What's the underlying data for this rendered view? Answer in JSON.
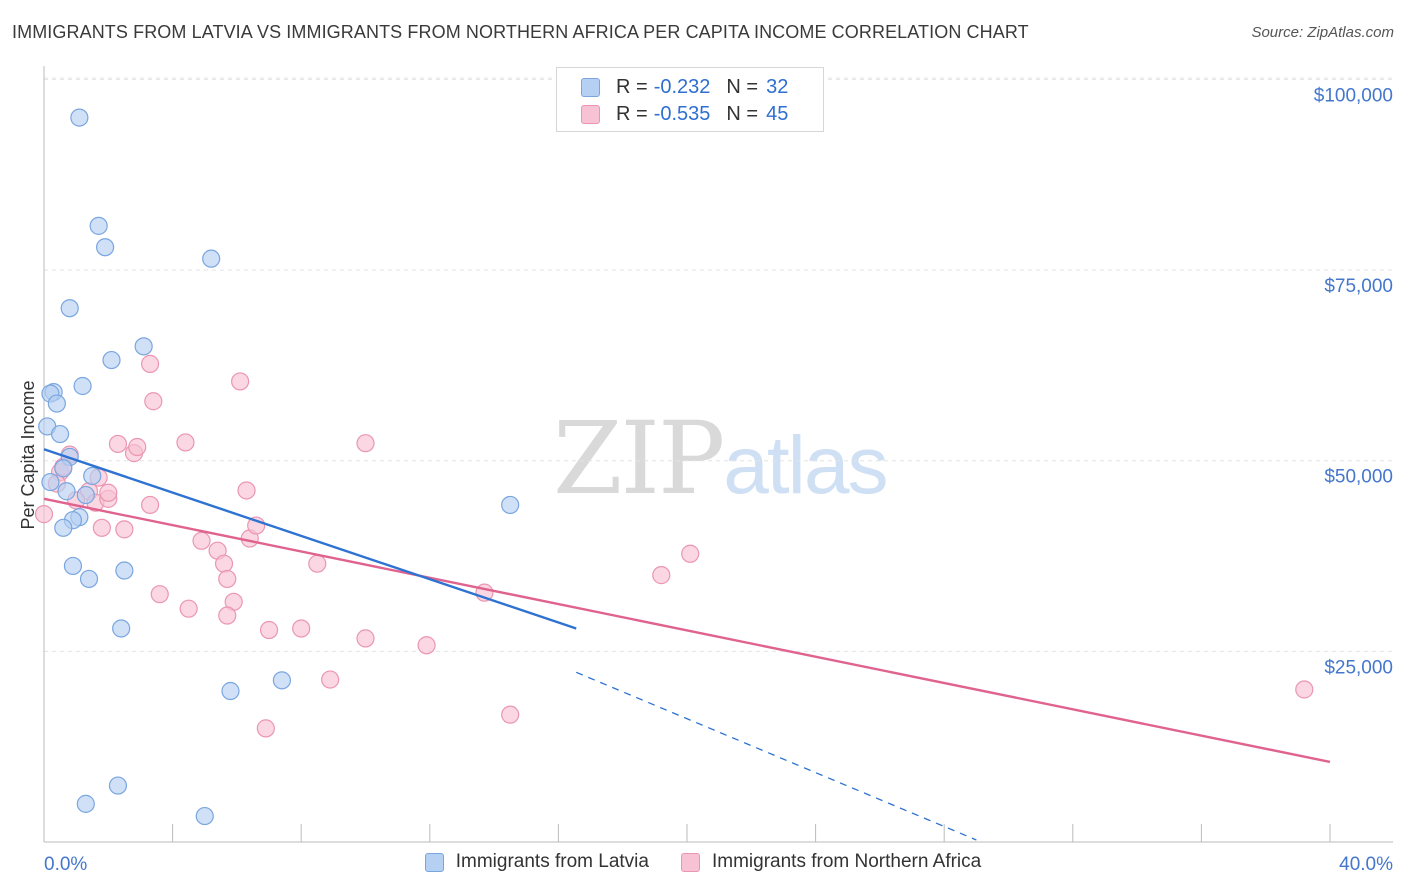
{
  "title": "IMMIGRANTS FROM LATVIA VS IMMIGRANTS FROM NORTHERN AFRICA PER CAPITA INCOME CORRELATION CHART",
  "source": "Source: ZipAtlas.com",
  "watermark": {
    "zip": "ZIP",
    "atlas": "atlas"
  },
  "legend": [
    {
      "r_label": "R =",
      "r_value": "-0.232",
      "n_label": "N =",
      "n_value": "32"
    },
    {
      "r_label": "R =",
      "r_value": "-0.535",
      "n_label": "N =",
      "n_value": "45"
    }
  ],
  "colors": {
    "latvia_fill": "#b5d0f2",
    "latvia_stroke": "#7aa6e0",
    "latvia_line": "#2e72d2",
    "africa_fill": "#f7c2d3",
    "africa_stroke": "#eb96b1",
    "africa_line": "#e0628f",
    "axis_text": "#4477cc",
    "grid": "#e4e4e4"
  },
  "chart_data": {
    "type": "scatter",
    "title": "IMMIGRANTS FROM LATVIA VS IMMIGRANTS FROM NORTHERN AFRICA PER CAPITA INCOME CORRELATION CHART",
    "xlabel": "",
    "ylabel": "Per Capita Income",
    "xlim": [
      0,
      40
    ],
    "ylim": [
      0,
      105000
    ],
    "x_tick_labels": {
      "min": "0.0%",
      "max": "40.0%"
    },
    "y_ticks": [
      {
        "value": 25000,
        "label": "$25,000"
      },
      {
        "value": 50000,
        "label": "$50,000"
      },
      {
        "value": 75000,
        "label": "$75,000"
      },
      {
        "value": 100000,
        "label": "$100,000"
      }
    ],
    "series": [
      {
        "name": "Immigrants from Latvia",
        "points": [
          [
            1.1,
            95000
          ],
          [
            1.7,
            80800
          ],
          [
            1.9,
            78000
          ],
          [
            5.2,
            76500
          ],
          [
            0.8,
            70000
          ],
          [
            3.1,
            65000
          ],
          [
            2.1,
            63200
          ],
          [
            1.2,
            59800
          ],
          [
            0.3,
            59000
          ],
          [
            0.2,
            58800
          ],
          [
            0.4,
            57500
          ],
          [
            0.1,
            54500
          ],
          [
            0.5,
            53500
          ],
          [
            0.8,
            50500
          ],
          [
            0.6,
            49000
          ],
          [
            1.5,
            48000
          ],
          [
            0.2,
            47200
          ],
          [
            0.7,
            46000
          ],
          [
            1.3,
            45500
          ],
          [
            14.5,
            44200
          ],
          [
            1.1,
            42600
          ],
          [
            0.9,
            42200
          ],
          [
            0.6,
            41200
          ],
          [
            0.9,
            36200
          ],
          [
            2.5,
            35600
          ],
          [
            1.4,
            34500
          ],
          [
            2.4,
            28000
          ],
          [
            7.4,
            21200
          ],
          [
            5.8,
            19800
          ],
          [
            2.3,
            7400
          ],
          [
            1.3,
            5000
          ],
          [
            5.0,
            3400
          ]
        ],
        "trend": {
          "x0": 0.0,
          "y0": 51500,
          "x1": 15.0,
          "y1": 25000,
          "dash_to_x": 29.0
        }
      },
      {
        "name": "Immigrants from Northern Africa",
        "points": [
          [
            0.0,
            43000
          ],
          [
            0.5,
            48500
          ],
          [
            0.8,
            50800
          ],
          [
            1.4,
            46000
          ],
          [
            1.6,
            44500
          ],
          [
            1.7,
            47800
          ],
          [
            2.0,
            45000
          ],
          [
            2.3,
            52200
          ],
          [
            2.8,
            51000
          ],
          [
            2.9,
            51800
          ],
          [
            3.3,
            44200
          ],
          [
            3.4,
            57800
          ],
          [
            3.3,
            62700
          ],
          [
            4.4,
            52400
          ],
          [
            4.9,
            39500
          ],
          [
            5.4,
            38200
          ],
          [
            5.6,
            36500
          ],
          [
            5.7,
            34500
          ],
          [
            6.1,
            60400
          ],
          [
            6.3,
            46100
          ],
          [
            6.4,
            39800
          ],
          [
            6.6,
            41500
          ],
          [
            5.9,
            31500
          ],
          [
            5.7,
            29700
          ],
          [
            4.5,
            30600
          ],
          [
            3.6,
            32500
          ],
          [
            7.0,
            27800
          ],
          [
            8.0,
            28000
          ],
          [
            8.5,
            36500
          ],
          [
            8.9,
            21300
          ],
          [
            10.0,
            26700
          ],
          [
            10.0,
            52300
          ],
          [
            11.9,
            25800
          ],
          [
            13.7,
            32700
          ],
          [
            14.5,
            16700
          ],
          [
            19.2,
            35000
          ],
          [
            20.1,
            37800
          ],
          [
            6.9,
            14900
          ],
          [
            39.2,
            20000
          ],
          [
            1.8,
            41200
          ],
          [
            2.5,
            41000
          ],
          [
            1.0,
            44800
          ],
          [
            0.4,
            47000
          ],
          [
            2.0,
            45800
          ],
          [
            0.6,
            49200
          ]
        ],
        "trend": {
          "x0": 0.0,
          "y0": 45000,
          "x1": 40.0,
          "y1": 10500
        }
      }
    ]
  }
}
